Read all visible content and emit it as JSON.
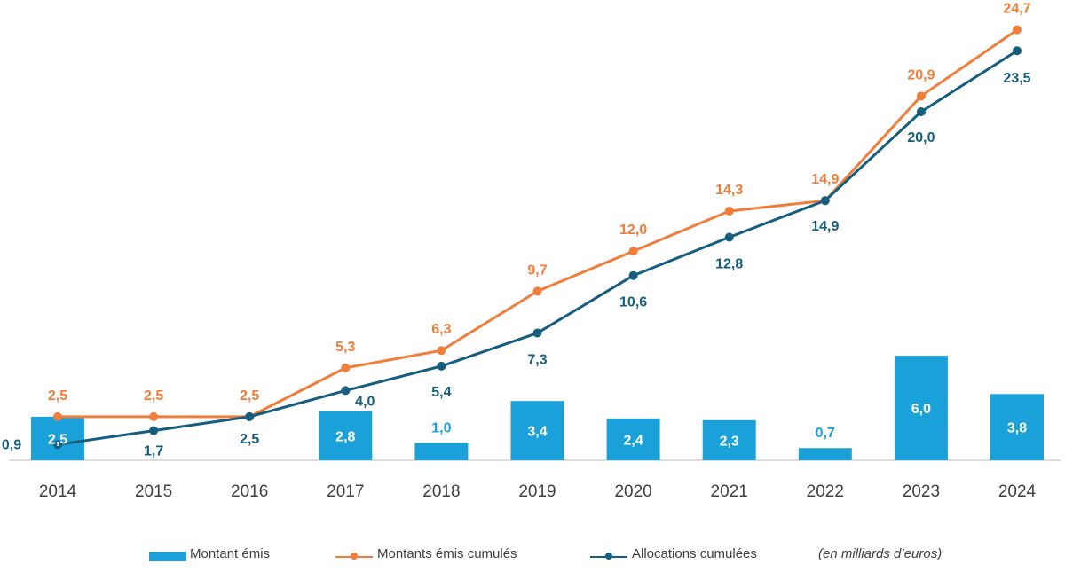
{
  "chart_data": {
    "type": "bar+line",
    "categories": [
      "2014",
      "2015",
      "2016",
      "2017",
      "2018",
      "2019",
      "2020",
      "2021",
      "2022",
      "2023",
      "2024"
    ],
    "series": [
      {
        "name": "Montant émis",
        "type": "bar",
        "color": "#1aa1d9",
        "values": [
          2.5,
          null,
          null,
          2.8,
          1.0,
          3.4,
          2.4,
          2.3,
          0.7,
          6.0,
          3.8
        ],
        "labels": [
          "2,5",
          "",
          "",
          "2,8",
          "1,0",
          "3,4",
          "2,4",
          "2,3",
          "0,7",
          "6,0",
          "3,8"
        ]
      },
      {
        "name": "Montants émis cumulés",
        "type": "line",
        "color": "#f07d3a",
        "values": [
          2.5,
          2.5,
          2.5,
          5.3,
          6.3,
          9.7,
          12.0,
          14.3,
          14.9,
          20.9,
          24.7
        ],
        "labels": [
          "2,5",
          "2,5",
          "2,5",
          "5,3",
          "6,3",
          "9,7",
          "12,0",
          "14,3",
          "14,9",
          "20,9",
          "24,7"
        ]
      },
      {
        "name": "Allocations cumulées",
        "type": "line",
        "color": "#155e80",
        "values": [
          0.9,
          1.7,
          2.5,
          4.0,
          5.4,
          7.3,
          10.6,
          12.8,
          14.9,
          20.0,
          23.5
        ],
        "labels": [
          "0,9",
          "1,7",
          "2,5",
          "4,0",
          "5,4",
          "7,3",
          "10,6",
          "12,8",
          "14,9",
          "20,0",
          "23,5"
        ]
      }
    ],
    "ylim": [
      0,
      26
    ],
    "grid": false,
    "legend_position": "bottom",
    "note": "(en milliards d’euros)"
  },
  "legend": {
    "bar": "Montant émis",
    "line1": "Montants émis cumulés",
    "line2": "Allocations cumulées",
    "note": "(en milliards d’euros)"
  },
  "colors": {
    "bar": "#1aa1d9",
    "line1": "#f07d3a",
    "line2": "#155e80",
    "axis": "#d0d0d0"
  }
}
